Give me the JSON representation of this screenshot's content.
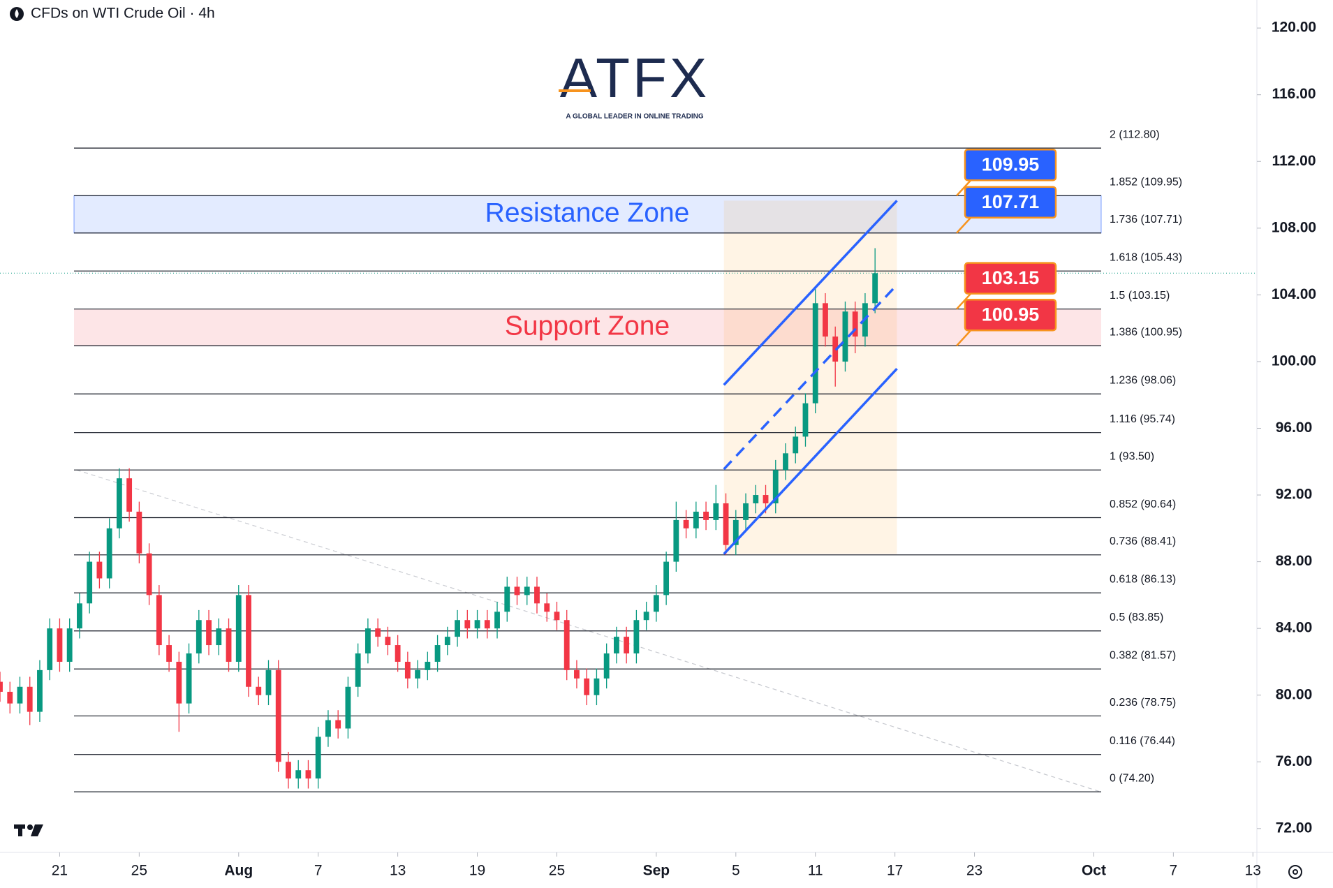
{
  "chart_data": {
    "type": "candlestick",
    "title": "CFDs on WTI Crude Oil · 4h",
    "logo": "ATFX",
    "logo_tagline": "A GLOBAL LEADER IN ONLINE TRADING",
    "up_color": "#089981",
    "down_color": "#f23645",
    "xlim": [
      -3,
      60.2
    ],
    "ylim": [
      70.57,
      121.68
    ],
    "yticks": [
      {
        "value": 120,
        "label": "120.00"
      },
      {
        "value": 116,
        "label": "116.00"
      },
      {
        "value": 112,
        "label": "112.00"
      },
      {
        "value": 108,
        "label": "108.00"
      },
      {
        "value": 104,
        "label": "104.00"
      },
      {
        "value": 100,
        "label": "100.00"
      },
      {
        "value": 96,
        "label": "96.00"
      },
      {
        "value": 92,
        "label": "92.00"
      },
      {
        "value": 88,
        "label": "88.00"
      },
      {
        "value": 84,
        "label": "84.00"
      },
      {
        "value": 80,
        "label": "80.00"
      },
      {
        "value": 76,
        "label": "76.00"
      },
      {
        "value": 72,
        "label": "72.00"
      }
    ],
    "xticks": [
      {
        "value": 0,
        "label": "21"
      },
      {
        "value": 4,
        "label": "25"
      },
      {
        "value": 9,
        "label": "Aug"
      },
      {
        "value": 13,
        "label": "7"
      },
      {
        "value": 17,
        "label": "13"
      },
      {
        "value": 21,
        "label": "19"
      },
      {
        "value": 25,
        "label": "25"
      },
      {
        "value": 30,
        "label": "Sep"
      },
      {
        "value": 34,
        "label": "5"
      },
      {
        "value": 38,
        "label": "11"
      },
      {
        "value": 42,
        "label": "17"
      },
      {
        "value": 46,
        "label": "23"
      },
      {
        "value": 52,
        "label": "Oct"
      },
      {
        "value": 56,
        "label": "7"
      },
      {
        "value": 60,
        "label": "13"
      }
    ],
    "x": [
      -3,
      -2.5,
      -2,
      -1.5,
      -1,
      -0.5,
      0,
      0.5,
      1,
      1.5,
      2,
      2.5,
      3,
      3.5,
      4,
      4.5,
      5,
      5.5,
      6,
      6.5,
      7,
      7.5,
      8,
      8.5,
      9,
      9.5,
      10,
      10.5,
      11,
      11.5,
      12,
      12.5,
      13,
      13.5,
      14,
      14.5,
      15,
      15.5,
      16,
      16.5,
      17,
      17.5,
      18,
      18.5,
      19,
      19.5,
      20,
      20.5,
      21,
      21.5,
      22,
      22.5,
      23,
      23.5,
      24,
      24.5,
      25,
      25.5,
      26,
      26.5,
      27,
      27.5,
      28,
      28.5,
      29,
      29.5,
      30,
      30.5,
      31,
      31.5,
      32,
      32.5,
      33,
      33.5,
      34,
      34.5,
      35,
      35.5,
      36,
      36.5,
      37,
      37.5,
      38,
      38.5,
      39,
      39.5,
      40,
      40.5,
      41
    ],
    "ohlc": [
      [
        80.8,
        81.4,
        79.6,
        80.2
      ],
      [
        80.2,
        80.8,
        78.9,
        79.5
      ],
      [
        79.5,
        81.1,
        78.9,
        80.5
      ],
      [
        80.5,
        81.1,
        78.2,
        79.0
      ],
      [
        79.0,
        82.1,
        78.4,
        81.5
      ],
      [
        81.5,
        84.6,
        80.9,
        84.0
      ],
      [
        84.0,
        84.6,
        81.4,
        82.0
      ],
      [
        82.0,
        84.6,
        81.4,
        84.0
      ],
      [
        84.0,
        86.1,
        83.4,
        85.5
      ],
      [
        85.5,
        88.6,
        84.9,
        88.0
      ],
      [
        88.0,
        88.6,
        86.4,
        87.0
      ],
      [
        87.0,
        90.6,
        86.4,
        90.0
      ],
      [
        90.0,
        93.6,
        89.4,
        93.0
      ],
      [
        93.0,
        93.6,
        90.4,
        91.0
      ],
      [
        91.0,
        91.6,
        87.9,
        88.5
      ],
      [
        88.5,
        89.1,
        85.4,
        86.0
      ],
      [
        86.0,
        86.6,
        82.4,
        83.0
      ],
      [
        83.0,
        83.6,
        81.4,
        82.0
      ],
      [
        82.0,
        82.6,
        77.8,
        79.5
      ],
      [
        79.5,
        83.1,
        78.9,
        82.5
      ],
      [
        82.5,
        85.1,
        81.9,
        84.5
      ],
      [
        84.5,
        85.1,
        82.4,
        83.0
      ],
      [
        83.0,
        84.6,
        82.4,
        84.0
      ],
      [
        84.0,
        84.6,
        81.4,
        82.0
      ],
      [
        82.0,
        86.6,
        81.4,
        86.0
      ],
      [
        86.0,
        86.6,
        79.9,
        80.5
      ],
      [
        80.5,
        81.1,
        79.4,
        80.0
      ],
      [
        80.0,
        82.1,
        79.4,
        81.5
      ],
      [
        81.5,
        82.1,
        75.4,
        76.0
      ],
      [
        76.0,
        76.6,
        74.4,
        75.0
      ],
      [
        75.0,
        76.1,
        74.4,
        75.5
      ],
      [
        75.5,
        76.1,
        74.4,
        75.0
      ],
      [
        75.0,
        78.1,
        74.4,
        77.5
      ],
      [
        77.5,
        79.1,
        76.9,
        78.5
      ],
      [
        78.5,
        79.1,
        77.4,
        78.0
      ],
      [
        78.0,
        81.1,
        77.4,
        80.5
      ],
      [
        80.5,
        83.1,
        79.9,
        82.5
      ],
      [
        82.5,
        84.6,
        81.9,
        84.0
      ],
      [
        84.0,
        84.6,
        82.9,
        83.5
      ],
      [
        83.5,
        84.1,
        82.4,
        83.0
      ],
      [
        83.0,
        83.6,
        81.4,
        82.0
      ],
      [
        82.0,
        82.6,
        80.4,
        81.0
      ],
      [
        81.0,
        82.1,
        80.4,
        81.5
      ],
      [
        81.5,
        82.6,
        80.9,
        82.0
      ],
      [
        82.0,
        83.6,
        81.4,
        83.0
      ],
      [
        83.0,
        84.1,
        82.4,
        83.5
      ],
      [
        83.5,
        85.1,
        82.9,
        84.5
      ],
      [
        84.5,
        85.1,
        83.4,
        84.0
      ],
      [
        84.0,
        85.1,
        83.4,
        84.5
      ],
      [
        84.5,
        85.1,
        83.4,
        84.0
      ],
      [
        84.0,
        85.6,
        83.4,
        85.0
      ],
      [
        85.0,
        87.1,
        84.4,
        86.5
      ],
      [
        86.5,
        87.1,
        85.4,
        86.0
      ],
      [
        86.0,
        87.1,
        85.4,
        86.5
      ],
      [
        86.5,
        87.1,
        84.9,
        85.5
      ],
      [
        85.5,
        86.1,
        84.4,
        85.0
      ],
      [
        85.0,
        85.6,
        83.9,
        84.5
      ],
      [
        84.5,
        85.1,
        80.9,
        81.5
      ],
      [
        81.5,
        82.1,
        80.4,
        81.0
      ],
      [
        81.0,
        81.6,
        79.4,
        80.0
      ],
      [
        80.0,
        81.6,
        79.4,
        81.0
      ],
      [
        81.0,
        83.1,
        80.4,
        82.5
      ],
      [
        82.5,
        84.1,
        81.9,
        83.5
      ],
      [
        83.5,
        84.1,
        81.9,
        82.5
      ],
      [
        82.5,
        85.1,
        81.9,
        84.5
      ],
      [
        84.5,
        85.6,
        83.9,
        85.0
      ],
      [
        85.0,
        86.6,
        84.4,
        86.0
      ],
      [
        86.0,
        88.6,
        85.4,
        88.0
      ],
      [
        88.0,
        91.6,
        87.4,
        90.5
      ],
      [
        90.5,
        91.1,
        89.4,
        90.0
      ],
      [
        90.0,
        91.6,
        89.4,
        91.0
      ],
      [
        91.0,
        91.6,
        89.9,
        90.5
      ],
      [
        90.5,
        92.6,
        89.9,
        91.5
      ],
      [
        91.5,
        92.1,
        88.4,
        89.0
      ],
      [
        89.0,
        91.1,
        88.4,
        90.5
      ],
      [
        90.5,
        92.1,
        89.9,
        91.5
      ],
      [
        91.5,
        92.6,
        90.9,
        92.0
      ],
      [
        92.0,
        92.6,
        90.9,
        91.5
      ],
      [
        91.5,
        94.1,
        90.9,
        93.5
      ],
      [
        93.5,
        95.1,
        92.9,
        94.5
      ],
      [
        94.5,
        96.1,
        93.9,
        95.5
      ],
      [
        95.5,
        98.1,
        94.9,
        97.5
      ],
      [
        97.5,
        104.4,
        96.9,
        103.5
      ],
      [
        103.5,
        104.1,
        100.9,
        101.5
      ],
      [
        101.5,
        102.1,
        98.5,
        100.0
      ],
      [
        100.0,
        103.6,
        99.4,
        103.0
      ],
      [
        103.0,
        103.6,
        100.5,
        101.5
      ],
      [
        101.5,
        104.1,
        100.9,
        103.5
      ],
      [
        103.5,
        106.8,
        102.9,
        105.3
      ]
    ],
    "fib_levels": [
      {
        "label": "2 (112.80)",
        "value": 112.8
      },
      {
        "label": "1.852 (109.95)",
        "value": 109.95
      },
      {
        "label": "1.736 (107.71)",
        "value": 107.71
      },
      {
        "label": "1.618 (105.43)",
        "value": 105.43
      },
      {
        "label": "1.5 (103.15)",
        "value": 103.15
      },
      {
        "label": "1.386 (100.95)",
        "value": 100.95
      },
      {
        "label": "1.236 (98.06)",
        "value": 98.06
      },
      {
        "label": "1.116 (95.74)",
        "value": 95.74
      },
      {
        "label": "1 (93.50)",
        "value": 93.5
      },
      {
        "label": "0.852 (90.64)",
        "value": 90.64
      },
      {
        "label": "0.736 (88.41)",
        "value": 88.41
      },
      {
        "label": "0.618 (86.13)",
        "value": 86.13
      },
      {
        "label": "0.5 (83.85)",
        "value": 83.85
      },
      {
        "label": "0.382 (81.57)",
        "value": 81.57
      },
      {
        "label": "0.236 (78.75)",
        "value": 78.75
      },
      {
        "label": "0.116 (76.44)",
        "value": 76.44
      },
      {
        "label": "0 (74.20)",
        "value": 74.2
      }
    ],
    "zones": [
      {
        "name": "Resistance Zone",
        "range": [
          107.71,
          109.95
        ],
        "color": "#2962ff"
      },
      {
        "name": "Support Zone",
        "range": [
          100.95,
          103.15
        ],
        "color": "#f23645"
      }
    ],
    "price_tags": [
      {
        "value": 109.95,
        "color": "#2962ff"
      },
      {
        "value": 107.71,
        "color": "#2962ff"
      },
      {
        "value": 103.15,
        "color": "#f23645"
      },
      {
        "value": 100.95,
        "color": "#f23645"
      }
    ],
    "channel": {
      "x": [
        33.4,
        42.1
      ],
      "upper": [
        98.6,
        109.65
      ],
      "middle": [
        93.55,
        104.6
      ],
      "lower": [
        88.46,
        99.57
      ],
      "color": "#2962ff"
    },
    "trendline": {
      "x": [
        0.85,
        52.35
      ],
      "values": [
        93.5,
        74.2
      ]
    }
  }
}
